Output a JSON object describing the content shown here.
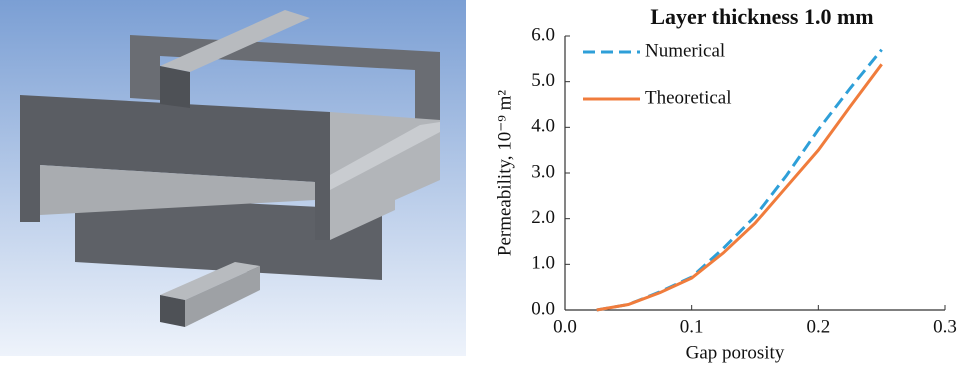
{
  "chart_data": {
    "type": "line",
    "title": "Layer thickness 1.0 mm",
    "xlabel": "Gap porosity",
    "ylabel": "Permeability, 10⁻⁹ m²",
    "x": [
      0.025,
      0.05,
      0.075,
      0.1,
      0.125,
      0.15,
      0.175,
      0.2,
      0.225,
      0.25
    ],
    "series": [
      {
        "name": "Numerical",
        "color": "#2e9fd8",
        "linestyle": "dashed",
        "values": [
          0,
          0.12,
          0.4,
          0.72,
          1.35,
          2.05,
          2.95,
          3.95,
          4.85,
          5.7
        ]
      },
      {
        "name": "Theoretical",
        "color": "#f07c3c",
        "linestyle": "solid",
        "values": [
          0,
          0.12,
          0.38,
          0.7,
          1.25,
          1.9,
          2.7,
          3.5,
          4.45,
          5.38
        ]
      }
    ],
    "xlim": [
      0,
      0.3
    ],
    "xticks": [
      {
        "value": 0,
        "label": "0.0"
      },
      0.1,
      0.2,
      0.3
    ],
    "ylim": [
      0,
      6
    ],
    "yticks": [
      {
        "value": 0,
        "label": "0.0"
      },
      {
        "value": 1,
        "label": "1.0"
      },
      {
        "value": 2,
        "label": "2.0"
      },
      {
        "value": 3,
        "label": "3.0"
      },
      {
        "value": 4,
        "label": "4.0"
      },
      {
        "value": 5,
        "label": "5.0"
      },
      {
        "value": 6,
        "label": "6.0"
      }
    ],
    "legend": "upper left"
  }
}
